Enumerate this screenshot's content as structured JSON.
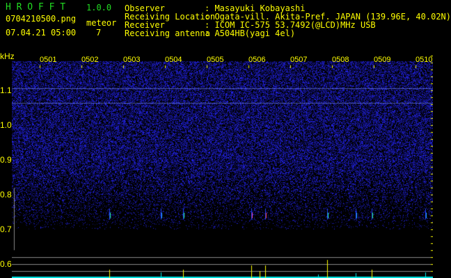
{
  "app": {
    "name": "H R O F F T",
    "version": "1.0.0"
  },
  "file": {
    "name": "0704210500.png",
    "datetime": "07.04.21 05:00"
  },
  "meteor": {
    "label": "meteor",
    "count": "7"
  },
  "info": [
    {
      "label": "Observer",
      "value": ": Masayuki Kobayashi"
    },
    {
      "label": "Receiving Location",
      "value": ": Ogata-vill. Akita-Pref. JAPAN (139.96E, 40.02N)"
    },
    {
      "label": "Receiver",
      "value": ": ICOM IC-575 53.7492(@LCD)MHz USB"
    },
    {
      "label": "Receiving antenna",
      "value": ": A504HB(yagi 4el)"
    }
  ],
  "axis": {
    "unit": "kHz",
    "y_ticks": [
      "1.1",
      "1.0",
      "0.9",
      "0.8",
      "0.7",
      "0.6"
    ],
    "x_ticks": [
      "0501",
      "0502",
      "0503",
      "0504",
      "0505",
      "0506",
      "0507",
      "0508",
      "0509",
      "0510"
    ]
  },
  "colors": {
    "text": "#ffff00",
    "title": "#22dd22",
    "noise": "#2020ff",
    "baseline": "#00e0e0"
  }
}
